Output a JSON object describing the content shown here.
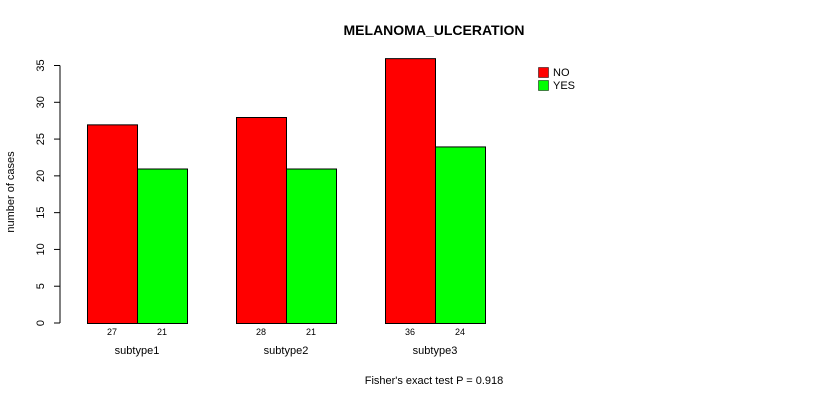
{
  "chart_data": {
    "type": "bar",
    "title": "MELANOMA_ULCERATION",
    "xlabel": "",
    "ylabel": "number of cases",
    "categories": [
      "subtype1",
      "subtype2",
      "subtype3"
    ],
    "series": [
      {
        "name": "NO",
        "color": "#ff0000",
        "values": [
          27,
          28,
          36
        ]
      },
      {
        "name": "YES",
        "color": "#00ff00",
        "values": [
          21,
          21,
          24
        ]
      }
    ],
    "ylim": [
      0,
      35
    ],
    "yticks": [
      0,
      5,
      10,
      15,
      20,
      25,
      30,
      35
    ],
    "grid": false,
    "legend_position": "top-right",
    "footnote": "Fisher's exact test P = 0.918"
  }
}
